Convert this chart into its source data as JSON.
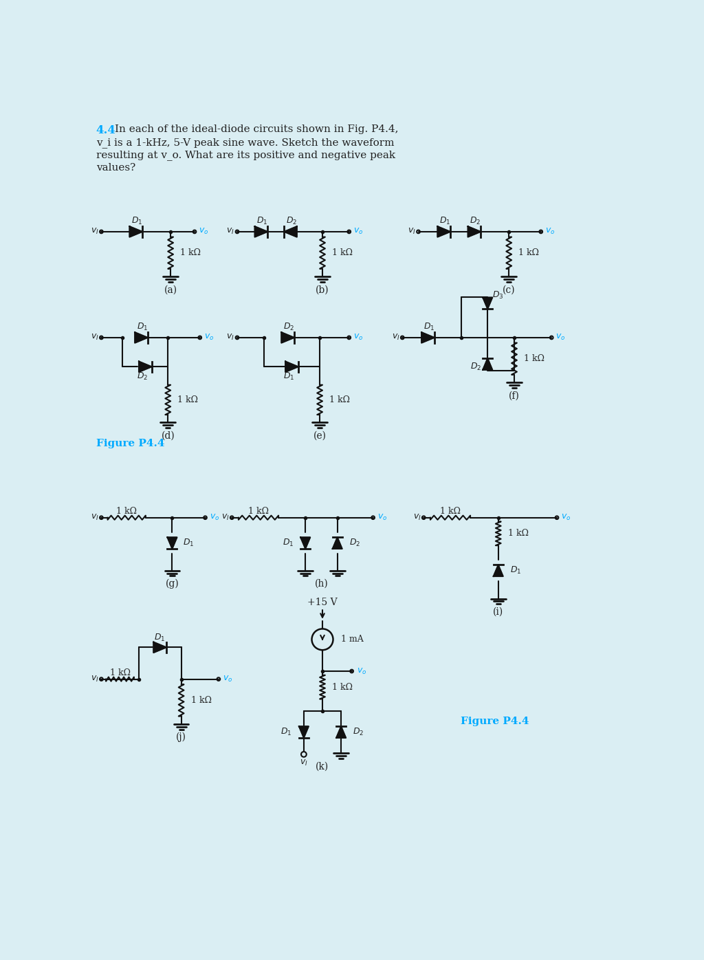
{
  "background_color": "#daeef3",
  "title_number": "4.4",
  "title_number_color": "#00aaff",
  "title_text": "In each of the ideal-diode circuits shown in Fig. P4.4,",
  "title_line2": "v_i is a 1-kHz, 5-V peak sine wave. Sketch the waveform",
  "title_line3": "resulting at v_o. What are its positive and negative peak",
  "title_line4": "values?",
  "figure_label": "Figure P4.4",
  "figure_label_color": "#00aaff",
  "text_color": "#222222",
  "circuit_line_color": "#111111",
  "label_color_blue": "#00aaff"
}
